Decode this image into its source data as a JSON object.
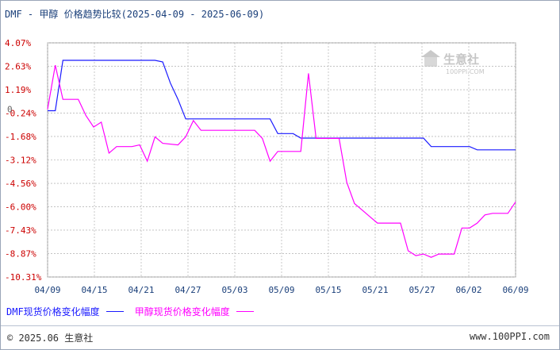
{
  "title": "DMF - 甲醇 价格趋势比较(2025-04-09 - 2025-06-09)",
  "watermark": {
    "text": "生意社",
    "url": "100PPI.COM"
  },
  "footer": {
    "copyright": "© 2025.06 生意社",
    "site": "www.100PPI.com"
  },
  "colors": {
    "series1": "#1a1aff",
    "series2": "#ff00ff",
    "grid": "#bbbbbb",
    "axis_text_y": "#cc0000",
    "axis_text_x": "#1a3f7a"
  },
  "chart_data": {
    "type": "line",
    "title": "DMF - 甲醇 价格趋势比较(2025-04-09 - 2025-06-09)",
    "xlabel": "",
    "ylabel": "",
    "x_tick_labels": [
      "04/09",
      "04/15",
      "04/21",
      "04/27",
      "05/03",
      "05/09",
      "05/15",
      "05/21",
      "05/27",
      "06/02",
      "06/09"
    ],
    "y_tick_labels": [
      "4.07%",
      "2.63%",
      "1.19%",
      "-0.24%",
      "-1.68%",
      "-3.12%",
      "-4.56%",
      "-6.00%",
      "-7.43%",
      "-8.87%",
      "-10.31%"
    ],
    "y_ticks": [
      4.07,
      2.63,
      1.19,
      -0.24,
      -1.68,
      -3.12,
      -4.56,
      -6.0,
      -7.43,
      -8.87,
      -10.31
    ],
    "zero_label": "0",
    "ylim": [
      -10.31,
      4.07
    ],
    "xlim": [
      0,
      61
    ],
    "grid": true,
    "legend_position": "bottom",
    "series": [
      {
        "name": "DMF现货价格变化幅度",
        "color": "#1a1aff",
        "points": [
          [
            0,
            -0.1
          ],
          [
            1,
            -0.1
          ],
          [
            2,
            3.0
          ],
          [
            14,
            3.0
          ],
          [
            15,
            2.9
          ],
          [
            16,
            1.6
          ],
          [
            17,
            0.6
          ],
          [
            18,
            -0.6
          ],
          [
            29,
            -0.6
          ],
          [
            30,
            -1.5
          ],
          [
            32,
            -1.5
          ],
          [
            33,
            -1.78
          ],
          [
            35,
            -1.78
          ],
          [
            49,
            -1.78
          ],
          [
            50,
            -2.3
          ],
          [
            55,
            -2.3
          ],
          [
            56,
            -2.5
          ],
          [
            61,
            -2.5
          ]
        ]
      },
      {
        "name": "甲醇现货价格变化幅度",
        "color": "#ff00ff",
        "points": [
          [
            0,
            0
          ],
          [
            1,
            2.7
          ],
          [
            2,
            0.6
          ],
          [
            4,
            0.6
          ],
          [
            5,
            -0.4
          ],
          [
            6,
            -1.1
          ],
          [
            7,
            -0.8
          ],
          [
            8,
            -2.7
          ],
          [
            9,
            -2.3
          ],
          [
            11,
            -2.3
          ],
          [
            12,
            -2.2
          ],
          [
            13,
            -3.2
          ],
          [
            14,
            -1.7
          ],
          [
            15,
            -2.1
          ],
          [
            17,
            -2.2
          ],
          [
            18,
            -1.7
          ],
          [
            19,
            -0.7
          ],
          [
            20,
            -1.3
          ],
          [
            27,
            -1.3
          ],
          [
            28,
            -1.8
          ],
          [
            29,
            -3.2
          ],
          [
            30,
            -2.6
          ],
          [
            33,
            -2.6
          ],
          [
            34,
            2.2
          ],
          [
            35,
            -1.8
          ],
          [
            37,
            -1.8
          ],
          [
            38,
            -1.8
          ],
          [
            39,
            -4.5
          ],
          [
            40,
            -5.8
          ],
          [
            41,
            -6.2
          ],
          [
            42,
            -6.6
          ],
          [
            43,
            -7.0
          ],
          [
            45,
            -7.0
          ],
          [
            46,
            -7.0
          ],
          [
            47,
            -8.7
          ],
          [
            48,
            -9.0
          ],
          [
            49,
            -8.9
          ],
          [
            50,
            -9.1
          ],
          [
            51,
            -8.9
          ],
          [
            53,
            -8.9
          ],
          [
            54,
            -7.3
          ],
          [
            55,
            -7.3
          ],
          [
            56,
            -7.0
          ],
          [
            57,
            -6.5
          ],
          [
            58,
            -6.4
          ],
          [
            59,
            -6.4
          ],
          [
            60,
            -6.4
          ],
          [
            61,
            -5.7
          ]
        ]
      }
    ]
  }
}
